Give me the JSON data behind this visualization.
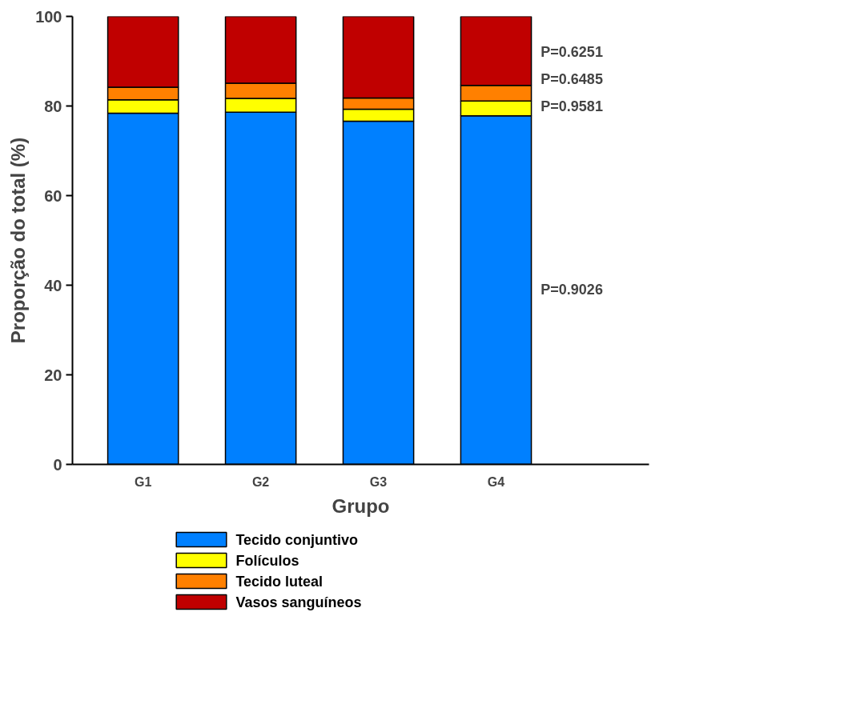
{
  "chart_data": {
    "type": "bar",
    "stacked": true,
    "xlabel": "Grupo",
    "ylabel": "Proporção do total (%)",
    "categories": [
      "G1",
      "G2",
      "G3",
      "G4"
    ],
    "series": [
      {
        "name": "Tecido conjuntivo",
        "color": "#0080ff",
        "values": [
          78.4,
          78.6,
          76.6,
          77.8
        ]
      },
      {
        "name": "Folículos",
        "color": "#ffff00",
        "values": [
          3.0,
          3.1,
          2.7,
          3.3
        ]
      },
      {
        "name": "Tecido luteal",
        "color": "#ff8000",
        "values": [
          2.8,
          3.4,
          2.5,
          3.5
        ]
      },
      {
        "name": "Vasos sanguíneos",
        "color": "#c00000",
        "values": [
          15.8,
          14.9,
          18.2,
          15.4
        ]
      }
    ],
    "ylim": [
      0,
      100
    ],
    "yticks": [
      0,
      20,
      40,
      60,
      80,
      100
    ],
    "grid": false,
    "legend": "bottom",
    "annotations": [
      "P=0.6251",
      "P=0.6485",
      "P=0.9581",
      "P=0.9026"
    ]
  }
}
